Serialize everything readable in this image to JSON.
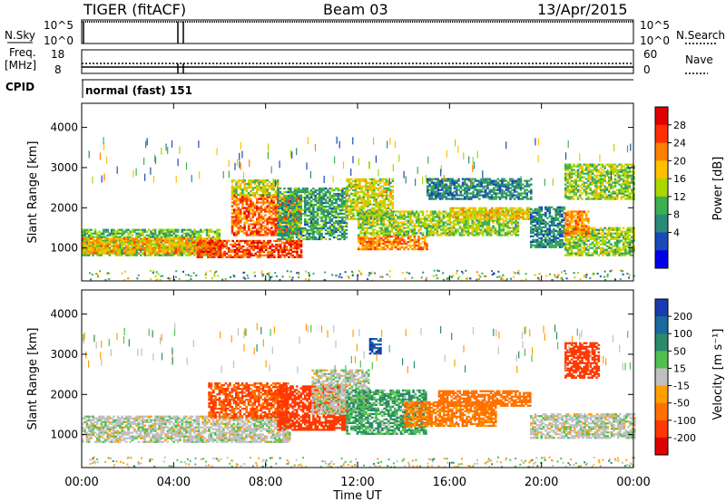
{
  "header": {
    "title": "TIGER (fitACF)",
    "beam": "Beam 03",
    "date": "13/Apr/2015"
  },
  "noise_panel": {
    "left_label": "N.Sky",
    "right_label": "N.Search",
    "ticks_left": [
      "10^5",
      "10^0"
    ],
    "ticks_right": [
      "10^5",
      "10^0"
    ]
  },
  "freq_panel": {
    "left_label": "Freq.",
    "left_unit": "[MHz]",
    "right_label": "Nave",
    "ticks_left": [
      "18",
      "8"
    ],
    "ticks_right": [
      "60",
      "0"
    ]
  },
  "cpid": {
    "label": "CPID",
    "value": "normal (fast) 151"
  },
  "panels": {
    "power": {
      "ylabel": "Slant Range [km]",
      "cbar_label": "Power [dB]",
      "cbar_ticks": [
        "28",
        "24",
        "20",
        "16",
        "12",
        "8",
        "4"
      ],
      "cbar_colors": [
        "#e00000",
        "#ff3000",
        "#ff8000",
        "#ffc000",
        "#a8d800",
        "#3cb050",
        "#2a8a7a",
        "#1a4ab8",
        "#0000e8"
      ]
    },
    "velocity": {
      "ylabel": "Slant Range [km]",
      "cbar_label": "Velocity [m s⁻¹]",
      "cbar_ticks": [
        "200",
        "100",
        "50",
        "15",
        "-15",
        "-50",
        "-100",
        "-200"
      ],
      "cbar_colors": [
        "#1a3ab0",
        "#1a6aa0",
        "#2a8a6a",
        "#50c050",
        "#c0c0c0",
        "#ffa000",
        "#ff7000",
        "#ff3800",
        "#e00000"
      ]
    }
  },
  "chart_data": {
    "type": "heatmap",
    "xlabel": "Time UT",
    "x_ticks": [
      "00:00",
      "04:00",
      "08:00",
      "12:00",
      "16:00",
      "20:00",
      "00:00"
    ],
    "x_range_hours": [
      0,
      24
    ],
    "y_ticks": [
      "4000",
      "3000",
      "2000",
      "1000"
    ],
    "y_range_km": [
      180,
      4600
    ],
    "power_bands": [
      {
        "t0": 0.0,
        "t1": 6.0,
        "r0": 800,
        "r1": 1450,
        "level": 12
      },
      {
        "t0": 0.0,
        "t1": 6.0,
        "r0": 850,
        "r1": 1250,
        "level": 20
      },
      {
        "t0": 5.0,
        "t1": 9.5,
        "r0": 750,
        "r1": 1200,
        "level": 26
      },
      {
        "t0": 6.5,
        "t1": 9.5,
        "r0": 1300,
        "r1": 2300,
        "level": 24
      },
      {
        "t0": 6.5,
        "t1": 8.5,
        "r0": 2300,
        "r1": 2700,
        "level": 16
      },
      {
        "t0": 8.5,
        "t1": 11.5,
        "r0": 1200,
        "r1": 2500,
        "level": 10
      },
      {
        "t0": 11.5,
        "t1": 13.5,
        "r0": 1700,
        "r1": 2700,
        "level": 16
      },
      {
        "t0": 12.0,
        "t1": 15.0,
        "r0": 950,
        "r1": 1300,
        "level": 22
      },
      {
        "t0": 12.0,
        "t1": 19.0,
        "r0": 1300,
        "r1": 1900,
        "level": 14
      },
      {
        "t0": 15.0,
        "t1": 19.5,
        "r0": 2200,
        "r1": 2700,
        "level": 8
      },
      {
        "t0": 16.0,
        "t1": 19.5,
        "r0": 1700,
        "r1": 2000,
        "level": 18
      },
      {
        "t0": 19.5,
        "t1": 21.0,
        "r0": 1000,
        "r1": 2000,
        "level": 8
      },
      {
        "t0": 21.0,
        "t1": 24.0,
        "r0": 800,
        "r1": 1500,
        "level": 14
      },
      {
        "t0": 21.0,
        "t1": 24.0,
        "r0": 2200,
        "r1": 3100,
        "level": 14
      },
      {
        "t0": 21.0,
        "t1": 22.0,
        "r0": 1300,
        "r1": 1900,
        "level": 22
      }
    ],
    "velocity_bands": [
      {
        "t0": 0.0,
        "t1": 9.0,
        "r0": 800,
        "r1": 1450,
        "level": 0
      },
      {
        "t0": 5.5,
        "t1": 9.0,
        "r0": 1400,
        "r1": 2300,
        "level": -100
      },
      {
        "t0": 8.5,
        "t1": 11.5,
        "r0": 1100,
        "r1": 2200,
        "level": -150
      },
      {
        "t0": 10.0,
        "t1": 12.5,
        "r0": 1500,
        "r1": 2600,
        "level": 0
      },
      {
        "t0": 11.5,
        "t1": 15.0,
        "r0": 1000,
        "r1": 2100,
        "level": 30
      },
      {
        "t0": 14.0,
        "t1": 18.0,
        "r0": 1200,
        "r1": 1800,
        "level": -60
      },
      {
        "t0": 15.5,
        "t1": 19.5,
        "r0": 1700,
        "r1": 2100,
        "level": -80
      },
      {
        "t0": 19.5,
        "t1": 24.0,
        "r0": 900,
        "r1": 1500,
        "level": 0
      },
      {
        "t0": 21.0,
        "t1": 22.5,
        "r0": 2400,
        "r1": 3300,
        "level": -150
      },
      {
        "t0": 12.5,
        "t1": 13.0,
        "r0": 3000,
        "r1": 3400,
        "level": 150
      }
    ]
  }
}
